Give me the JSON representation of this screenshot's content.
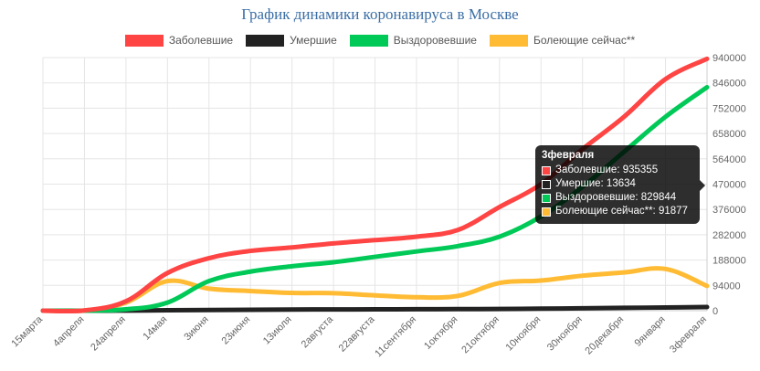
{
  "chart_data": {
    "type": "line",
    "title": "График динамики коронавируса в Москве",
    "x": [
      "15марта",
      "4апреля",
      "24апреля",
      "14мая",
      "3июня",
      "23июня",
      "13июля",
      "2августа",
      "22августа",
      "11сентября",
      "1октября",
      "21октября",
      "10ноября",
      "30ноября",
      "20декабря",
      "9января",
      "3февраля"
    ],
    "ylim": [
      0,
      940000
    ],
    "yticks": [
      0,
      94000,
      188000,
      282000,
      376000,
      470000,
      564000,
      658000,
      752000,
      846000,
      940000
    ],
    "ytick_labels": [
      "0",
      "94000",
      "188000",
      "282000",
      "376000",
      "470000",
      "564000",
      "658000",
      "752000",
      "846000",
      "940000"
    ],
    "grid": true,
    "legend_position": "top",
    "series": [
      {
        "name": "Заболевшие",
        "color": "#ff4444",
        "values": [
          0,
          1000,
          35000,
          140000,
          195000,
          222000,
          235000,
          250000,
          262000,
          275000,
          300000,
          385000,
          470000,
          600000,
          720000,
          860000,
          935355
        ]
      },
      {
        "name": "Умершие",
        "color": "#222222",
        "values": [
          0,
          10,
          500,
          1500,
          2500,
          3500,
          4200,
          4700,
          5000,
          5400,
          5800,
          6500,
          7500,
          9000,
          10500,
          12000,
          13634
        ]
      },
      {
        "name": "Выздоровевшие",
        "color": "#00c957",
        "values": [
          0,
          5,
          5000,
          30000,
          110000,
          145000,
          165000,
          180000,
          200000,
          220000,
          240000,
          275000,
          350000,
          460000,
          590000,
          720000,
          829844
        ]
      },
      {
        "name": "Болеющие сейчас**",
        "color": "#ffbb33",
        "values": [
          0,
          1000,
          30000,
          110000,
          82000,
          73000,
          66000,
          65000,
          57000,
          50000,
          55000,
          103000,
          112000,
          130000,
          142000,
          155000,
          91877
        ]
      }
    ]
  },
  "tooltip": {
    "title": "3февраля",
    "rows": [
      "Заболевшие: 935355",
      "Умершие: 13634",
      "Выздоровевшие: 829844",
      "Болеющие сейчас**: 91877"
    ]
  }
}
